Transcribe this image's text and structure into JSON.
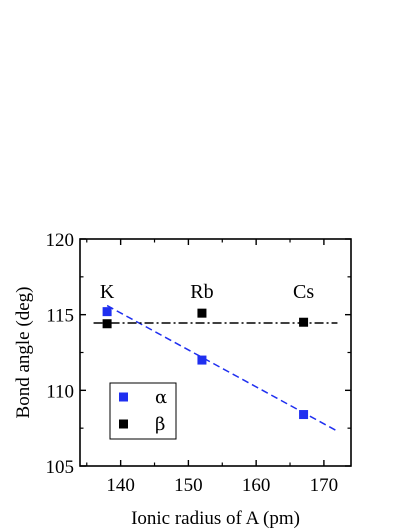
{
  "chart_data": {
    "type": "scatter",
    "xlabel": "Ionic radius of A (pm)",
    "ylabel": "Bond angle (deg)",
    "xlim": [
      134,
      174
    ],
    "ylim": [
      105,
      120
    ],
    "x_ticks": [
      140,
      150,
      160,
      170
    ],
    "y_ticks": [
      105,
      110,
      115,
      120
    ],
    "grid": false,
    "legend_position": "bottom-left",
    "series": [
      {
        "name": "α",
        "color": "#1f2ff0",
        "marker": "square",
        "x": [
          138,
          152,
          167
        ],
        "y": [
          115.2,
          112.0,
          108.4
        ]
      },
      {
        "name": "β",
        "color": "#000000",
        "marker": "square",
        "x": [
          138,
          152,
          167
        ],
        "y": [
          114.4,
          115.1,
          114.5
        ]
      }
    ],
    "fit_lines": [
      {
        "series": "α",
        "style": "dashed",
        "color": "#1f2ff0",
        "x": [
          138,
          172
        ],
        "y": [
          115.6,
          107.3
        ]
      },
      {
        "series": "β",
        "style": "dash-dot",
        "color": "#000000",
        "x": [
          136,
          172
        ],
        "y": [
          114.45,
          114.45
        ]
      }
    ],
    "annotations": [
      {
        "text": "K",
        "x": 138,
        "y": 116.1
      },
      {
        "text": "Rb",
        "x": 152,
        "y": 116.1
      },
      {
        "text": "Cs",
        "x": 167,
        "y": 116.1
      }
    ]
  }
}
